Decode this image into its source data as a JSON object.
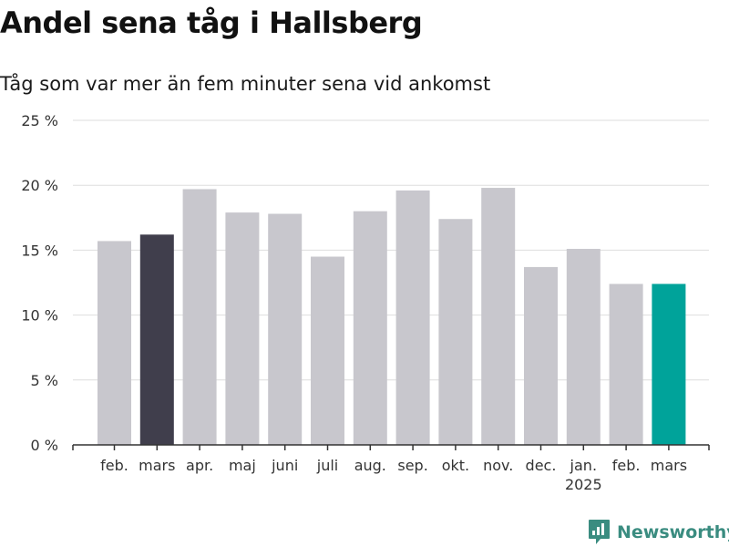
{
  "header": {
    "title": "Andel sena tåg i Hallsberg",
    "subtitle": "Tåg som var mer än fem minuter sena vid ankomst"
  },
  "brand": {
    "name": "Newsworthy",
    "icon": "newsworthy-logo-icon",
    "color": "#3a8c80"
  },
  "chart_data": {
    "type": "bar",
    "categories": [
      "feb.",
      "mars",
      "apr.",
      "maj",
      "juni",
      "juli",
      "aug.",
      "sep.",
      "okt.",
      "nov.",
      "dec.",
      "jan.",
      "feb.",
      "mars"
    ],
    "year_labels": [
      {
        "index": 11,
        "label": "2025"
      }
    ],
    "values": [
      15.7,
      16.2,
      19.7,
      17.9,
      17.8,
      14.5,
      18.0,
      19.6,
      17.4,
      19.8,
      13.7,
      15.1,
      12.4,
      12.4
    ],
    "colors": [
      "#c8c7cd",
      "#403e4c",
      "#c8c7cd",
      "#c8c7cd",
      "#c8c7cd",
      "#c8c7cd",
      "#c8c7cd",
      "#c8c7cd",
      "#c8c7cd",
      "#c8c7cd",
      "#c8c7cd",
      "#c8c7cd",
      "#c8c7cd",
      "#00a39a"
    ],
    "ylim": [
      0,
      25
    ],
    "yticks": [
      0,
      5,
      10,
      15,
      20,
      25
    ],
    "ytick_labels": [
      "0 %",
      "5 %",
      "10 %",
      "15 %",
      "20 %",
      "25 %"
    ],
    "grid": true,
    "xlabel": "",
    "ylabel": ""
  }
}
